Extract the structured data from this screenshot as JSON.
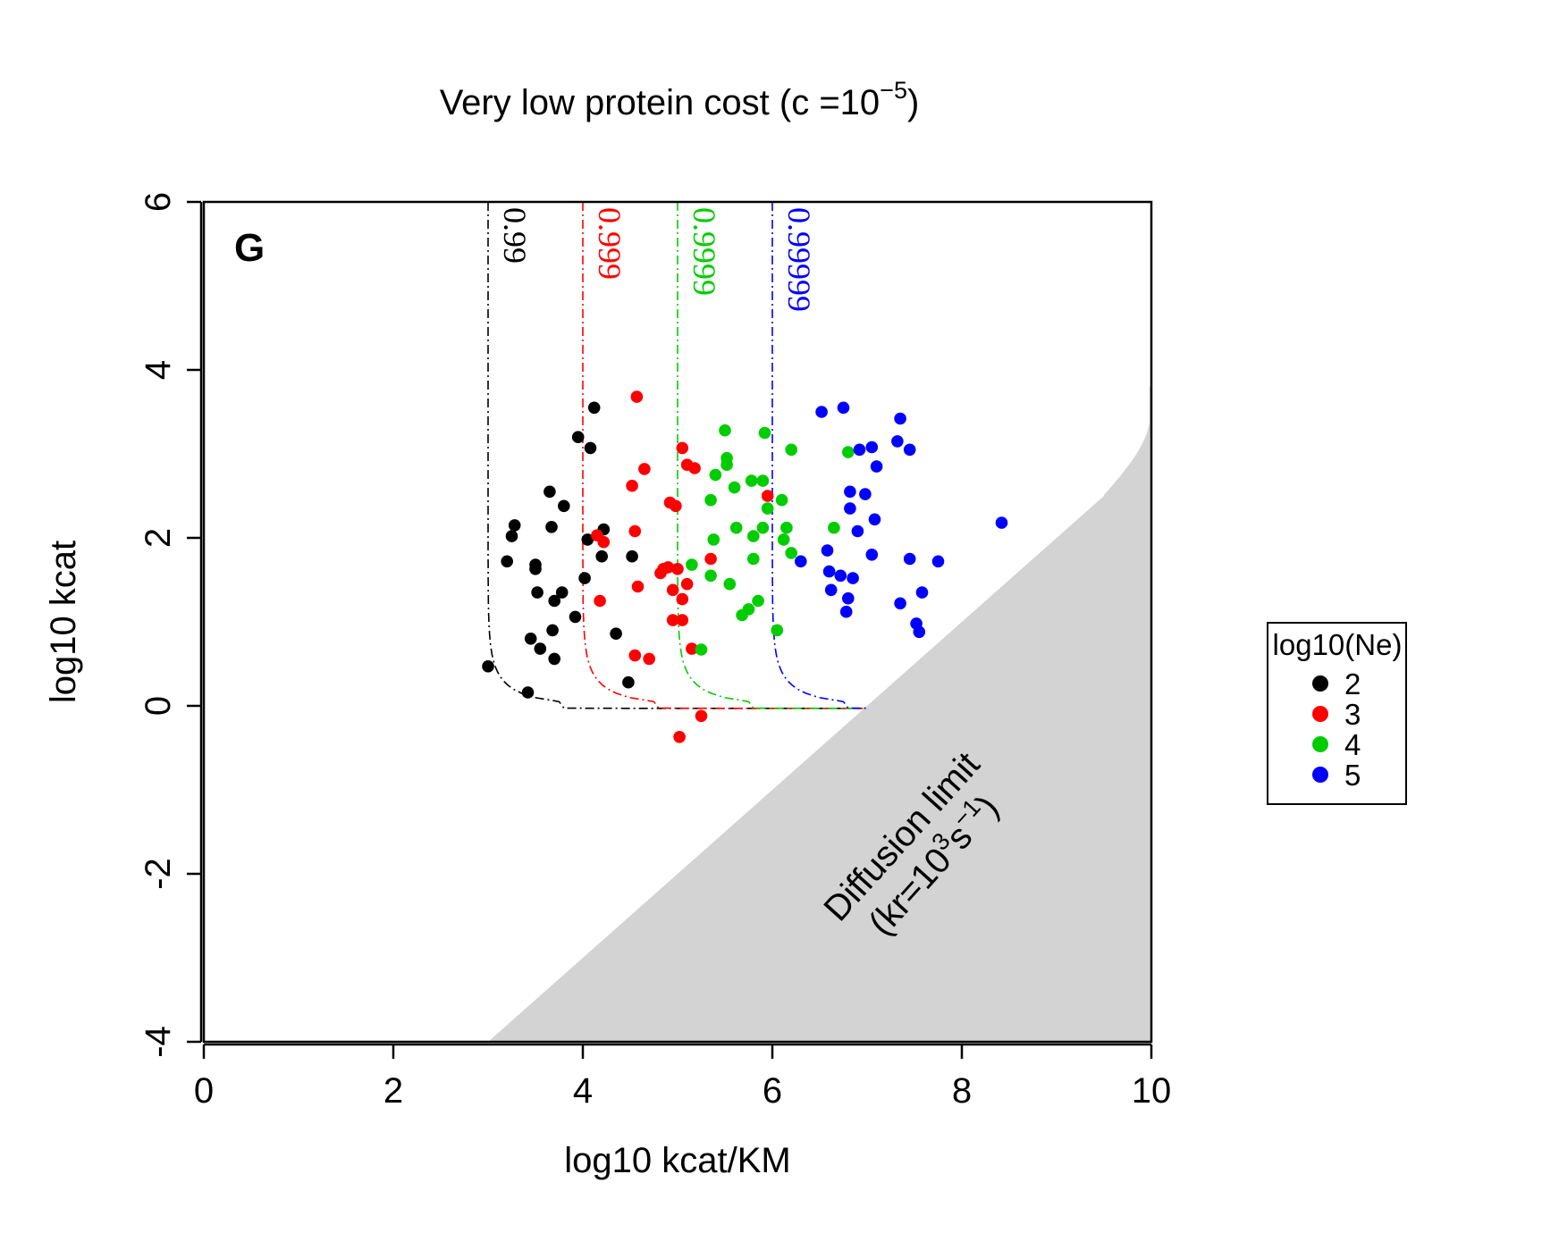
{
  "chart_data": {
    "type": "scatter",
    "title": "Very low protein cost (c =10",
    "title_sup": "−5",
    "title_end": ")",
    "panel_label": "G",
    "xlabel": "log10 kcat/KM",
    "ylabel": "log10 kcat",
    "xlim": [
      0,
      10
    ],
    "ylim": [
      -4,
      6
    ],
    "xticks": [
      "0",
      "2",
      "4",
      "6",
      "8",
      "10"
    ],
    "xtick_values": [
      0,
      2,
      4,
      6,
      8,
      10
    ],
    "yticks": [
      "-4",
      "-2",
      "0",
      "2",
      "4",
      "6"
    ],
    "ytick_values": [
      -4,
      -2,
      0,
      2,
      4,
      6
    ],
    "grid": false,
    "legend": {
      "title": "log10(Ne)",
      "placement": "right",
      "entries": [
        "2",
        "3",
        "4",
        "5"
      ]
    },
    "colors": {
      "2": "#000000",
      "3": "#ff0000",
      "4": "#00cd00",
      "5": "#0000ff"
    },
    "region_color": "#d3d3d3",
    "diffusion": {
      "line1": "Diffusion limit",
      "line2_a": "(kr=10",
      "line2_sup1": "3",
      "line2_b": "s",
      "line2_sup2": "−1",
      "line2_c": ")"
    },
    "contours": [
      {
        "label": "0.99",
        "x": 3,
        "color": "#000000"
      },
      {
        "label": "0.999",
        "x": 4,
        "color": "#ff0000"
      },
      {
        "label": "0.9999",
        "x": 5,
        "color": "#00cd00"
      },
      {
        "label": "0.99999",
        "x": 6,
        "color": "#0000ff"
      }
    ],
    "series": [
      {
        "name": "2",
        "points": [
          [
            3.0,
            0.47
          ],
          [
            3.2,
            1.72
          ],
          [
            3.25,
            2.02
          ],
          [
            3.28,
            2.15
          ],
          [
            3.42,
            0.16
          ],
          [
            3.45,
            0.8
          ],
          [
            3.5,
            1.68
          ],
          [
            3.5,
            1.63
          ],
          [
            3.52,
            1.35
          ],
          [
            3.55,
            0.68
          ],
          [
            3.65,
            2.55
          ],
          [
            3.67,
            2.13
          ],
          [
            3.68,
            0.9
          ],
          [
            3.7,
            0.56
          ],
          [
            3.7,
            1.25
          ],
          [
            3.78,
            1.35
          ],
          [
            3.8,
            2.38
          ],
          [
            3.92,
            1.06
          ],
          [
            3.95,
            3.2
          ],
          [
            4.02,
            1.52
          ],
          [
            4.05,
            1.98
          ],
          [
            4.08,
            3.07
          ],
          [
            4.12,
            3.55
          ],
          [
            4.2,
            1.78
          ],
          [
            4.22,
            2.1
          ],
          [
            4.35,
            0.86
          ],
          [
            4.48,
            0.28
          ],
          [
            4.52,
            1.78
          ]
        ]
      },
      {
        "name": "3",
        "points": [
          [
            4.15,
            2.03
          ],
          [
            4.18,
            1.25
          ],
          [
            4.22,
            1.95
          ],
          [
            4.52,
            2.62
          ],
          [
            4.55,
            2.08
          ],
          [
            4.55,
            0.6
          ],
          [
            4.57,
            3.68
          ],
          [
            4.58,
            1.42
          ],
          [
            4.65,
            2.82
          ],
          [
            4.7,
            0.56
          ],
          [
            4.82,
            1.58
          ],
          [
            4.85,
            1.63
          ],
          [
            4.9,
            1.65
          ],
          [
            4.92,
            2.42
          ],
          [
            4.95,
            1.02
          ],
          [
            4.95,
            1.38
          ],
          [
            4.98,
            2.38
          ],
          [
            5.0,
            1.63
          ],
          [
            5.02,
            -0.37
          ],
          [
            5.05,
            3.07
          ],
          [
            5.05,
            1.02
          ],
          [
            5.05,
            1.27
          ],
          [
            5.1,
            1.45
          ],
          [
            5.1,
            2.87
          ],
          [
            5.15,
            0.68
          ],
          [
            5.18,
            2.83
          ],
          [
            5.25,
            -0.12
          ],
          [
            5.35,
            1.75
          ],
          [
            5.95,
            2.5
          ]
        ]
      },
      {
        "name": "4",
        "points": [
          [
            5.15,
            1.68
          ],
          [
            5.25,
            0.67
          ],
          [
            5.35,
            2.45
          ],
          [
            5.35,
            1.55
          ],
          [
            5.38,
            1.98
          ],
          [
            5.4,
            2.75
          ],
          [
            5.5,
            3.28
          ],
          [
            5.52,
            2.87
          ],
          [
            5.52,
            2.95
          ],
          [
            5.55,
            1.45
          ],
          [
            5.6,
            2.6
          ],
          [
            5.62,
            2.12
          ],
          [
            5.68,
            1.08
          ],
          [
            5.75,
            1.15
          ],
          [
            5.78,
            2.68
          ],
          [
            5.8,
            2.02
          ],
          [
            5.8,
            1.75
          ],
          [
            5.85,
            1.25
          ],
          [
            5.9,
            2.12
          ],
          [
            5.9,
            2.68
          ],
          [
            5.92,
            3.25
          ],
          [
            5.95,
            2.35
          ],
          [
            6.05,
            0.9
          ],
          [
            6.1,
            2.45
          ],
          [
            6.12,
            1.98
          ],
          [
            6.15,
            2.12
          ],
          [
            6.2,
            1.82
          ],
          [
            6.2,
            3.05
          ],
          [
            6.65,
            2.12
          ],
          [
            6.8,
            3.02
          ]
        ]
      },
      {
        "name": "5",
        "points": [
          [
            6.3,
            1.72
          ],
          [
            6.52,
            3.5
          ],
          [
            6.58,
            1.85
          ],
          [
            6.6,
            1.6
          ],
          [
            6.62,
            1.38
          ],
          [
            6.72,
            1.55
          ],
          [
            6.75,
            3.55
          ],
          [
            6.78,
            1.12
          ],
          [
            6.8,
            1.28
          ],
          [
            6.82,
            2.55
          ],
          [
            6.82,
            2.35
          ],
          [
            6.85,
            1.52
          ],
          [
            6.9,
            2.08
          ],
          [
            6.92,
            3.05
          ],
          [
            6.98,
            2.52
          ],
          [
            7.05,
            3.08
          ],
          [
            7.05,
            1.8
          ],
          [
            7.08,
            2.22
          ],
          [
            7.1,
            2.85
          ],
          [
            7.32,
            3.15
          ],
          [
            7.35,
            3.42
          ],
          [
            7.35,
            1.22
          ],
          [
            7.45,
            3.05
          ],
          [
            7.45,
            1.75
          ],
          [
            7.52,
            0.98
          ],
          [
            7.55,
            0.88
          ],
          [
            7.58,
            1.35
          ],
          [
            7.75,
            1.72
          ],
          [
            8.42,
            2.18
          ]
        ]
      }
    ]
  }
}
